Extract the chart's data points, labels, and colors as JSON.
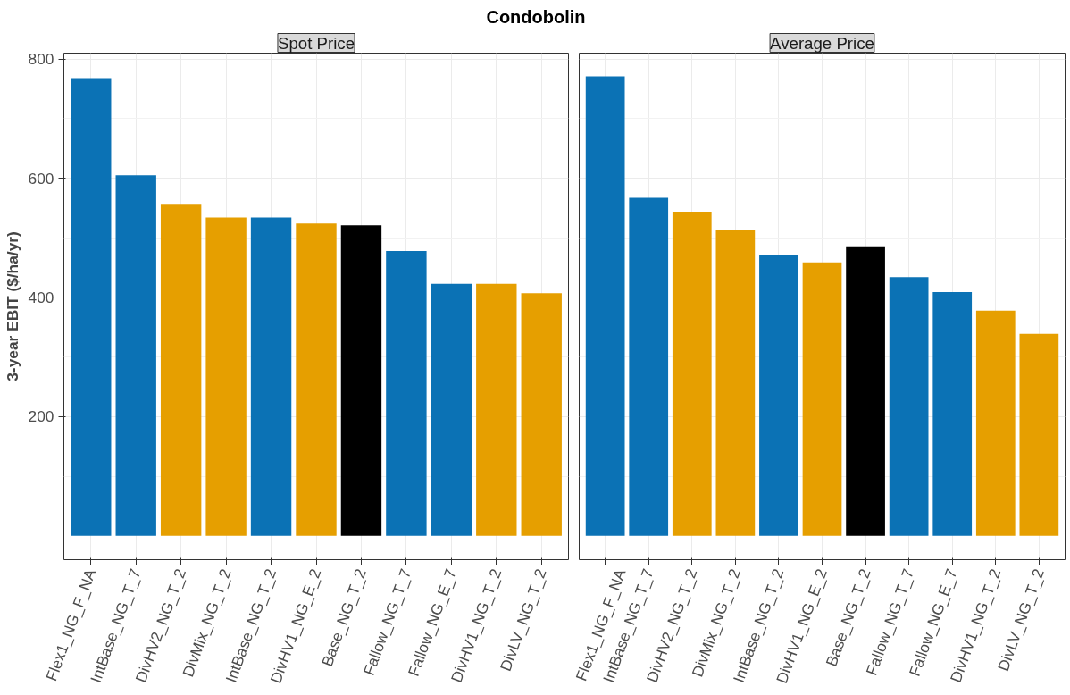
{
  "chart_data": [
    {
      "type": "bar",
      "title": "Condobolin",
      "subtitle": "Spot Price",
      "ylabel": "3-year EBIT ($/ha/yr)",
      "categories": [
        "Flex1_NG_F_NA",
        "IntBase_NG_T_7",
        "DivHV2_NG_T_2",
        "DivMix_NG_T_2",
        "IntBase_NG_T_2",
        "DivHV1_NG_E_2",
        "Base_NG_T_2",
        "Fallow_NG_T_7",
        "Fallow_NG_E_7",
        "DivHV1_NG_T_2",
        "DivLV_NG_T_2"
      ],
      "values": [
        768,
        605,
        557,
        534,
        534,
        524,
        521,
        478,
        423,
        423,
        407
      ],
      "colors": [
        "#0b72b5",
        "#0b72b5",
        "#e69f00",
        "#e69f00",
        "#0b72b5",
        "#e69f00",
        "#000000",
        "#0b72b5",
        "#0b72b5",
        "#e69f00",
        "#e69f00"
      ],
      "ylim": [
        -40,
        810
      ],
      "yticks": [
        200,
        400,
        600,
        800
      ],
      "grid": true
    },
    {
      "type": "bar",
      "subtitle": "Average Price",
      "categories": [
        "Flex1_NG_F_NA",
        "IntBase_NG_T_7",
        "DivHV2_NG_T_2",
        "DivMix_NG_T_2",
        "IntBase_NG_T_2",
        "DivHV1_NG_E_2",
        "Base_NG_T_2",
        "Fallow_NG_T_7",
        "Fallow_NG_E_7",
        "DivHV1_NG_T_2",
        "DivLV_NG_T_2"
      ],
      "values": [
        771,
        567,
        544,
        514,
        472,
        459,
        486,
        434,
        409,
        378,
        339
      ],
      "colors": [
        "#0b72b5",
        "#0b72b5",
        "#e69f00",
        "#e69f00",
        "#0b72b5",
        "#e69f00",
        "#000000",
        "#0b72b5",
        "#0b72b5",
        "#e69f00",
        "#e69f00"
      ],
      "ylim": [
        -40,
        810
      ],
      "yticks": [
        200,
        400,
        600,
        800
      ],
      "grid": true,
      "tick_labels": "x"
    }
  ]
}
